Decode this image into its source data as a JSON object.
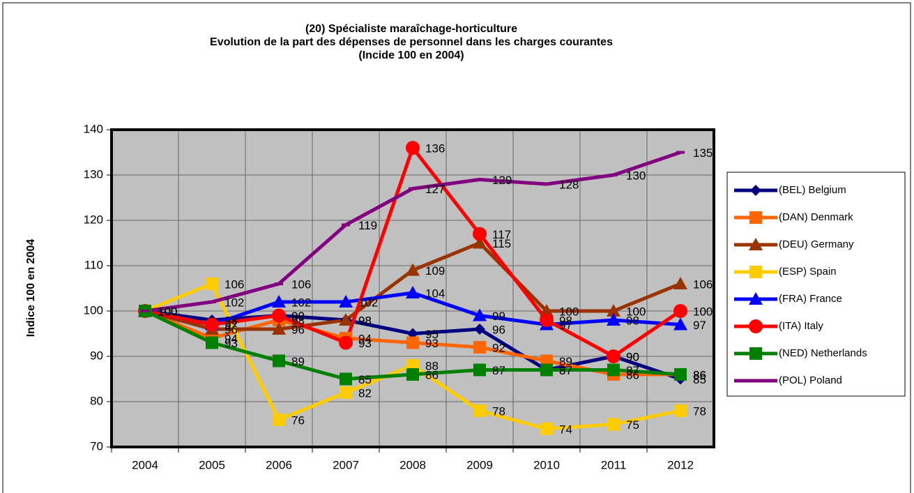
{
  "chart_data": {
    "type": "line",
    "title": "(20) Spécialiste maraîchage-horticulture",
    "subtitle": "Evolution de la part des dépenses de personnel dans les charges courantes",
    "subtitle2": "(Incide 100 en 2004)",
    "y_label": "Indice 100 en 2004",
    "categories": [
      "2004",
      "2005",
      "2006",
      "2007",
      "2008",
      "2009",
      "2010",
      "2011",
      "2012"
    ],
    "ylim": [
      70,
      140
    ],
    "yticks": [
      70,
      80,
      90,
      100,
      110,
      120,
      130,
      140
    ],
    "grid": true,
    "legend": "right",
    "series": [
      {
        "name": "(BEL) Belgium",
        "color": "#000080",
        "marker": "diamond",
        "values": [
          100,
          98,
          99,
          98,
          95,
          96,
          87,
          90,
          85
        ]
      },
      {
        "name": "(DAN) Denmark",
        "color": "#ff6600",
        "marker": "square",
        "values": [
          100,
          94,
          98,
          94,
          93,
          92,
          89,
          86,
          86
        ]
      },
      {
        "name": "(DEU) Germany",
        "color": "#993300",
        "marker": "triangle",
        "values": [
          100,
          96,
          96,
          98,
          109,
          115,
          100,
          100,
          106
        ]
      },
      {
        "name": "(ESP) Spain",
        "color": "#ffcc00",
        "marker": "square",
        "values": [
          100,
          106,
          76,
          82,
          88,
          78,
          74,
          75,
          78
        ]
      },
      {
        "name": "(FRA) France",
        "color": "#0000ff",
        "marker": "triangle",
        "values": [
          100,
          97,
          102,
          102,
          104,
          99,
          97,
          98,
          97
        ]
      },
      {
        "name": "(ITA) Italy",
        "color": "#ff0000",
        "marker": "circle",
        "values": [
          100,
          97,
          99,
          93,
          136,
          117,
          98,
          90,
          100
        ]
      },
      {
        "name": "(NED) Netherlands",
        "color": "#008000",
        "marker": "square",
        "values": [
          100,
          93,
          89,
          85,
          86,
          87,
          87,
          87,
          86
        ]
      },
      {
        "name": "(POL) Poland",
        "color": "#800080",
        "marker": "dash",
        "values": [
          100,
          102,
          106,
          119,
          127,
          129,
          128,
          130,
          135
        ]
      }
    ]
  }
}
